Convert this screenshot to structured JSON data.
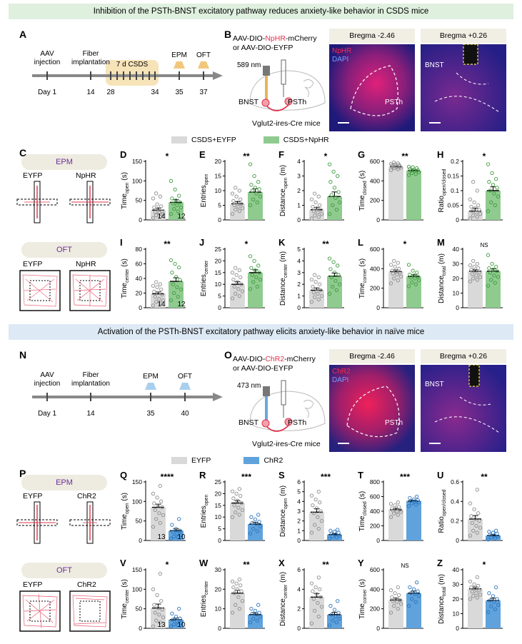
{
  "titles": {
    "top": "Inhibition of the PSTh-BNST excitatory pathway reduces anxiety-like behavior in CSDS mice",
    "bottom": "Activation of the PSTh-BNST excitatory pathway elicits anxiety-like behavior in naïve mice"
  },
  "panel_letters": [
    "A",
    "B",
    "C",
    "D",
    "E",
    "F",
    "G",
    "H",
    "I",
    "J",
    "K",
    "L",
    "M",
    "N",
    "O",
    "P",
    "Q",
    "R",
    "S",
    "T",
    "U",
    "V",
    "W",
    "X",
    "Y",
    "Z"
  ],
  "timeline_top": {
    "labels": [
      "AAV\ninjection",
      "Fiber\nimplantation",
      "7 d CSDS",
      "EPM",
      "OFT"
    ],
    "days": [
      "Day 1",
      "14",
      "28",
      "34",
      "35",
      "37"
    ]
  },
  "timeline_bottom": {
    "labels": [
      "AAV\ninjection",
      "Fiber\nimplantation",
      "EPM",
      "OFT"
    ],
    "days": [
      "Day 1",
      "14",
      "35",
      "40"
    ]
  },
  "virus_top": {
    "line1_pre": "AAV-DIO-",
    "line1_hl": "NpHR",
    "line1_post": "-mCherry",
    "line2": "or AAV-DIO-EYFP",
    "laser": "589 nm",
    "region1": "BNST",
    "region2": "PSTh",
    "mouse": "Vglut2-ires-Cre mice"
  },
  "virus_bottom": {
    "line1_pre": "AAV-DIO-",
    "line1_hl": "ChR2",
    "line1_post": "-mCherry",
    "line2": "or AAV-DIO-EYFP",
    "laser": "473 nm",
    "region1": "BNST",
    "region2": "PSTh",
    "mouse": "Vglut2-ires-Cre mice"
  },
  "micro_top": {
    "left_title": "Bregma -2.46",
    "right_title": "Bregma +0.26",
    "stain1": "NpHR",
    "stain2": "DAPI",
    "region_left": "PSTh",
    "region_right": "BNST"
  },
  "micro_bottom": {
    "left_title": "Bregma -2.46",
    "right_title": "Bregma +0.26",
    "stain1": "ChR2",
    "stain2": "DAPI",
    "region_left": "PSTh",
    "region_right": "BNST"
  },
  "legend_top": {
    "a": "CSDS+EYFP",
    "b": "CSDS+NpHR"
  },
  "legend_bottom": {
    "a": "EYFP",
    "b": "ChR2"
  },
  "maze": {
    "epm": "EPM",
    "oft": "OFT",
    "top_groups": [
      "EYFP",
      "NpHR"
    ],
    "bottom_groups": [
      "EYFP",
      "ChR2"
    ]
  },
  "colors": {
    "ctrl_fill": "#d9d9d9",
    "ctrl_dot": "#8c8c8c",
    "nphr_fill": "#8fcb8f",
    "nphr_dot": "#3f9a3f",
    "chr2_fill": "#5fa2dc",
    "chr2_dot": "#2a74bd",
    "purple_text": "#6b2f9a",
    "red": "#e0304a"
  },
  "chart_data": [
    {
      "type": "bar",
      "panel": "D",
      "ylabel": "Time",
      "sub": "open",
      "unit": "(s)",
      "ticks": [
        0,
        50,
        100,
        150
      ],
      "ylim": [
        0,
        150
      ],
      "values": [
        25,
        45
      ],
      "sig": "*",
      "n": [
        "14",
        "12"
      ],
      "points": [
        [
          5,
          8,
          12,
          15,
          18,
          20,
          22,
          28,
          32,
          35,
          40,
          55,
          60,
          68
        ],
        [
          15,
          22,
          28,
          32,
          38,
          42,
          45,
          50,
          55,
          62,
          78,
          100
        ]
      ]
    },
    {
      "type": "bar",
      "panel": "E",
      "ylabel": "Entries",
      "sub": "open",
      "unit": "",
      "ticks": [
        0,
        5,
        10,
        15,
        20
      ],
      "ylim": [
        0,
        20
      ],
      "values": [
        5.5,
        9.5
      ],
      "sig": "**",
      "n": [],
      "points": [
        [
          2,
          3,
          3.5,
          4,
          4.5,
          5,
          5.5,
          6,
          6.5,
          7,
          8,
          9,
          10,
          11
        ],
        [
          5,
          6,
          7,
          8,
          9,
          10,
          10.5,
          11,
          12,
          13,
          15,
          19
        ]
      ]
    },
    {
      "type": "bar",
      "panel": "F",
      "ylabel": "Distance",
      "sub": "open",
      "unit": "(m)",
      "ticks": [
        0,
        1,
        2,
        3,
        4
      ],
      "ylim": [
        0,
        4
      ],
      "values": [
        0.7,
        1.6
      ],
      "sig": "*",
      "n": [],
      "points": [
        [
          0.1,
          0.2,
          0.3,
          0.4,
          0.5,
          0.6,
          0.7,
          0.8,
          0.9,
          1.0,
          1.2,
          1.4,
          1.6,
          1.8
        ],
        [
          0.4,
          0.7,
          1.0,
          1.2,
          1.5,
          1.7,
          1.9,
          2.2,
          2.6,
          3.0,
          3.3,
          3.8
        ]
      ]
    },
    {
      "type": "bar",
      "panel": "G",
      "ylabel": "Time",
      "sub": "closed",
      "unit": "(s)",
      "ticks": [
        0,
        200,
        400,
        600
      ],
      "ylim": [
        0,
        600
      ],
      "values": [
        545,
        505
      ],
      "sig": "**",
      "n": [],
      "points": [
        [
          510,
          520,
          530,
          535,
          540,
          545,
          550,
          555,
          560,
          565,
          570,
          575,
          580,
          590
        ],
        [
          460,
          470,
          480,
          490,
          500,
          505,
          510,
          515,
          520,
          530,
          540,
          545
        ]
      ]
    },
    {
      "type": "bar",
      "panel": "H",
      "ylabel": "Ratio",
      "sub": "open/closed",
      "unit": "",
      "ticks": [
        0,
        0.05,
        0.1,
        0.15,
        0.2
      ],
      "ylim": [
        0,
        0.2
      ],
      "values": [
        0.03,
        0.1
      ],
      "sig": "*",
      "n": [],
      "points": [
        [
          0.005,
          0.01,
          0.015,
          0.02,
          0.025,
          0.03,
          0.035,
          0.04,
          0.045,
          0.05,
          0.06,
          0.07,
          0.1,
          0.13
        ],
        [
          0.03,
          0.05,
          0.06,
          0.08,
          0.09,
          0.1,
          0.11,
          0.12,
          0.13,
          0.14,
          0.16,
          0.19
        ]
      ]
    },
    {
      "type": "bar",
      "panel": "I",
      "ylabel": "Time",
      "sub": "center",
      "unit": "(s)",
      "ticks": [
        0,
        20,
        40,
        60,
        80
      ],
      "ylim": [
        0,
        80
      ],
      "values": [
        19,
        36
      ],
      "sig": "**",
      "n": [
        "14",
        "12"
      ],
      "points": [
        [
          3,
          6,
          8,
          10,
          12,
          15,
          18,
          20,
          22,
          25,
          28,
          30,
          32,
          35
        ],
        [
          10,
          15,
          20,
          25,
          28,
          32,
          38,
          42,
          48,
          55,
          60,
          65
        ]
      ]
    },
    {
      "type": "bar",
      "panel": "J",
      "ylabel": "Entries",
      "sub": "center",
      "unit": "",
      "ticks": [
        0,
        5,
        10,
        15,
        20,
        25
      ],
      "ylim": [
        0,
        25
      ],
      "values": [
        10,
        15
      ],
      "sig": "*",
      "n": [],
      "points": [
        [
          4,
          5,
          6,
          7,
          8,
          9,
          10,
          11,
          12,
          13,
          14,
          15,
          16,
          17
        ],
        [
          8,
          9,
          11,
          12,
          13,
          14,
          15,
          16,
          17,
          18,
          20,
          22
        ]
      ]
    },
    {
      "type": "bar",
      "panel": "K",
      "ylabel": "Distance",
      "sub": "center",
      "unit": "(m)",
      "ticks": [
        0,
        1,
        2,
        3,
        4,
        5
      ],
      "ylim": [
        0,
        5
      ],
      "values": [
        1.5,
        2.7
      ],
      "sig": "**",
      "n": [],
      "points": [
        [
          0.5,
          0.7,
          0.9,
          1.0,
          1.2,
          1.3,
          1.5,
          1.6,
          1.8,
          2.0,
          2.2,
          2.4,
          2.6,
          2.8
        ],
        [
          1.2,
          1.5,
          1.8,
          2.0,
          2.3,
          2.6,
          2.8,
          3.0,
          3.3,
          3.6,
          3.9,
          4.2
        ]
      ]
    },
    {
      "type": "bar",
      "panel": "L",
      "ylabel": "Time",
      "sub": "corner",
      "unit": "(s)",
      "ticks": [
        0,
        200,
        400,
        600
      ],
      "ylim": [
        0,
        600
      ],
      "values": [
        370,
        320
      ],
      "sig": "*",
      "n": [],
      "points": [
        [
          250,
          280,
          300,
          320,
          340,
          350,
          360,
          370,
          380,
          400,
          420,
          440,
          460,
          480
        ],
        [
          220,
          240,
          260,
          280,
          300,
          310,
          320,
          330,
          340,
          360,
          380,
          440
        ]
      ]
    },
    {
      "type": "bar",
      "panel": "M",
      "ylabel": "Distance",
      "sub": "total",
      "unit": "(m)",
      "ticks": [
        0,
        10,
        20,
        30,
        40
      ],
      "ylim": [
        0,
        40
      ],
      "values": [
        25,
        25
      ],
      "sig": "NS",
      "n": [],
      "points": [
        [
          18,
          19,
          20,
          21,
          22,
          23,
          24,
          25,
          26,
          27,
          28,
          29,
          30,
          32
        ],
        [
          15,
          17,
          19,
          21,
          22,
          24,
          25,
          26,
          27,
          28,
          30,
          36
        ]
      ]
    },
    {
      "type": "bar",
      "panel": "Q",
      "ylabel": "Time",
      "sub": "open",
      "unit": "(s)",
      "ticks": [
        0,
        50,
        100,
        150
      ],
      "ylim": [
        0,
        150
      ],
      "values": [
        85,
        25
      ],
      "sig": "****",
      "n": [
        "13",
        "10"
      ],
      "points": [
        [
          35,
          45,
          55,
          65,
          70,
          78,
          85,
          90,
          95,
          100,
          110,
          120,
          140
        ],
        [
          5,
          8,
          10,
          14,
          18,
          22,
          25,
          30,
          40,
          55
        ]
      ]
    },
    {
      "type": "bar",
      "panel": "R",
      "ylabel": "Entries",
      "sub": "open",
      "unit": "",
      "ticks": [
        0,
        5,
        10,
        15,
        20,
        25
      ],
      "ylim": [
        0,
        25
      ],
      "values": [
        16,
        7
      ],
      "sig": "***",
      "n": [],
      "points": [
        [
          10,
          11,
          12,
          13,
          14,
          15,
          16,
          17,
          18,
          19,
          20,
          21,
          22
        ],
        [
          3,
          4,
          5,
          6,
          7,
          7.5,
          8,
          9,
          10,
          11
        ]
      ]
    },
    {
      "type": "bar",
      "panel": "S",
      "ylabel": "Distance",
      "sub": "open",
      "unit": "(m)",
      "ticks": [
        0,
        1,
        2,
        3,
        4,
        5,
        6
      ],
      "ylim": [
        0,
        6
      ],
      "values": [
        2.9,
        0.6
      ],
      "sig": "***",
      "n": [],
      "points": [
        [
          0.8,
          1.2,
          1.6,
          2.0,
          2.4,
          2.8,
          3.0,
          3.3,
          3.6,
          3.9,
          4.2,
          4.6,
          5.0
        ],
        [
          0.2,
          0.3,
          0.4,
          0.5,
          0.6,
          0.7,
          0.8,
          0.9,
          1.0,
          1.1
        ]
      ]
    },
    {
      "type": "bar",
      "panel": "T",
      "ylabel": "Time",
      "sub": "closed",
      "unit": "(s)",
      "ticks": [
        0,
        200,
        400,
        600,
        800
      ],
      "ylim": [
        0,
        800
      ],
      "values": [
        420,
        540
      ],
      "sig": "***",
      "n": [],
      "points": [
        [
          320,
          350,
          370,
          390,
          400,
          410,
          420,
          430,
          440,
          460,
          480,
          500,
          520
        ],
        [
          470,
          490,
          510,
          520,
          530,
          540,
          550,
          560,
          580,
          600
        ]
      ]
    },
    {
      "type": "bar",
      "panel": "U",
      "ylabel": "Ratio",
      "sub": "open/closed",
      "unit": "",
      "ticks": [
        0,
        0.2,
        0.4,
        0.6
      ],
      "ylim": [
        0,
        0.6
      ],
      "values": [
        0.22,
        0.05
      ],
      "sig": "**",
      "n": [],
      "points": [
        [
          0.05,
          0.08,
          0.1,
          0.13,
          0.15,
          0.18,
          0.2,
          0.22,
          0.25,
          0.28,
          0.32,
          0.38,
          0.52
        ],
        [
          0.01,
          0.02,
          0.03,
          0.04,
          0.05,
          0.06,
          0.07,
          0.08,
          0.09,
          0.1
        ]
      ]
    },
    {
      "type": "bar",
      "panel": "V",
      "ylabel": "Time",
      "sub": "center",
      "unit": "(s)",
      "ticks": [
        0,
        50,
        100,
        150
      ],
      "ylim": [
        0,
        150
      ],
      "values": [
        52,
        22
      ],
      "sig": "*",
      "n": [
        "13",
        "10"
      ],
      "points": [
        [
          5,
          15,
          20,
          28,
          35,
          40,
          48,
          52,
          60,
          70,
          85,
          100,
          140
        ],
        [
          5,
          8,
          10,
          14,
          18,
          22,
          25,
          30,
          38,
          50
        ]
      ]
    },
    {
      "type": "bar",
      "panel": "W",
      "ylabel": "Entries",
      "sub": "center",
      "unit": "",
      "ticks": [
        0,
        10,
        20,
        30
      ],
      "ylim": [
        0,
        30
      ],
      "values": [
        18,
        7
      ],
      "sig": "**",
      "n": [],
      "points": [
        [
          8,
          10,
          12,
          14,
          16,
          18,
          19,
          20,
          21,
          22,
          23,
          24,
          25
        ],
        [
          3,
          4,
          5,
          6,
          7,
          7.5,
          8,
          9,
          10,
          12
        ]
      ]
    },
    {
      "type": "bar",
      "panel": "X",
      "ylabel": "Distance",
      "sub": "center",
      "unit": "(m)",
      "ticks": [
        0,
        2,
        4,
        6
      ],
      "ylim": [
        0,
        6
      ],
      "values": [
        3.2,
        1.4
      ],
      "sig": "**",
      "n": [],
      "points": [
        [
          0.5,
          1.2,
          1.8,
          2.2,
          2.6,
          3.0,
          3.2,
          3.5,
          3.8,
          4.0,
          4.2,
          4.6,
          5.2
        ],
        [
          0.3,
          0.6,
          0.8,
          1.0,
          1.2,
          1.4,
          1.6,
          1.9,
          2.3,
          2.8
        ]
      ]
    },
    {
      "type": "bar",
      "panel": "Y",
      "ylabel": "Time",
      "sub": "corner",
      "unit": "(s)",
      "ticks": [
        0,
        200,
        400,
        600
      ],
      "ylim": [
        0,
        600
      ],
      "values": [
        290,
        360
      ],
      "sig": "NS",
      "n": [],
      "points": [
        [
          160,
          200,
          230,
          250,
          270,
          280,
          290,
          300,
          320,
          340,
          360,
          390,
          420
        ],
        [
          230,
          270,
          300,
          330,
          350,
          360,
          380,
          400,
          420,
          470
        ]
      ]
    },
    {
      "type": "bar",
      "panel": "Z",
      "ylabel": "Distance",
      "sub": "total",
      "unit": "(m)",
      "ticks": [
        0,
        10,
        20,
        30,
        40
      ],
      "ylim": [
        0,
        40
      ],
      "values": [
        27,
        19
      ],
      "sig": "*",
      "n": [],
      "points": [
        [
          20,
          21,
          22,
          23,
          24,
          25,
          26,
          27,
          28,
          29,
          30,
          32,
          35
        ],
        [
          11,
          13,
          15,
          16,
          18,
          19,
          20,
          22,
          24,
          28
        ]
      ]
    }
  ]
}
